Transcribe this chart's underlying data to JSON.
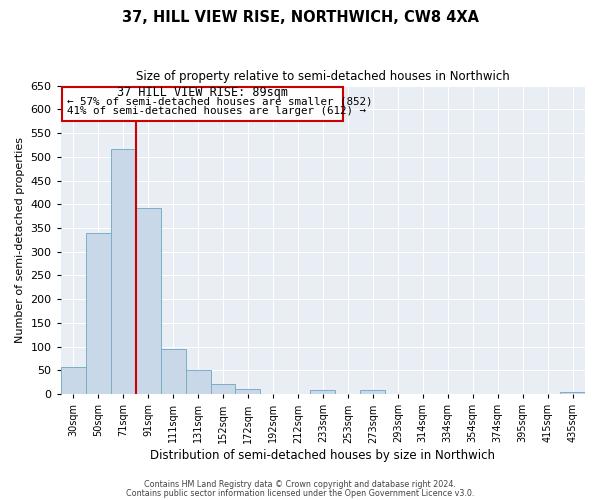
{
  "title": "37, HILL VIEW RISE, NORTHWICH, CW8 4XA",
  "subtitle": "Size of property relative to semi-detached houses in Northwich",
  "xlabel": "Distribution of semi-detached houses by size in Northwich",
  "ylabel": "Number of semi-detached properties",
  "bin_labels": [
    "30sqm",
    "50sqm",
    "71sqm",
    "91sqm",
    "111sqm",
    "131sqm",
    "152sqm",
    "172sqm",
    "192sqm",
    "212sqm",
    "233sqm",
    "253sqm",
    "273sqm",
    "293sqm",
    "314sqm",
    "334sqm",
    "354sqm",
    "374sqm",
    "395sqm",
    "415sqm",
    "435sqm"
  ],
  "bar_values": [
    57,
    340,
    517,
    393,
    95,
    50,
    22,
    10,
    0,
    0,
    8,
    0,
    9,
    0,
    0,
    0,
    0,
    0,
    0,
    0,
    5
  ],
  "bar_color": "#c8d8e8",
  "bar_edge_color": "#7aafc8",
  "vline_color": "#cc0000",
  "vline_x_index": 3,
  "ylim": [
    0,
    650
  ],
  "yticks": [
    0,
    50,
    100,
    150,
    200,
    250,
    300,
    350,
    400,
    450,
    500,
    550,
    600,
    650
  ],
  "annotation_title": "37 HILL VIEW RISE: 89sqm",
  "annotation_line1": "← 57% of semi-detached houses are smaller (852)",
  "annotation_line2": "41% of semi-detached houses are larger (612) →",
  "annotation_box_color": "#cc0000",
  "footer_line1": "Contains HM Land Registry data © Crown copyright and database right 2024.",
  "footer_line2": "Contains public sector information licensed under the Open Government Licence v3.0.",
  "bg_color": "#e8eef4",
  "grid_color": "white"
}
